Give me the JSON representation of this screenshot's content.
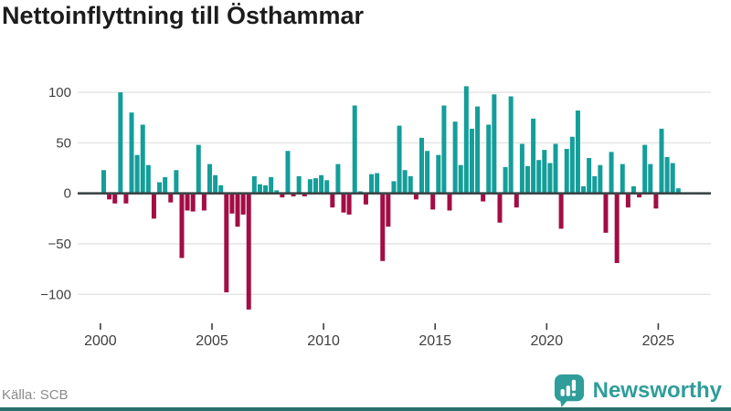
{
  "header": {
    "title": "Nettoinflyttning till Östhammar"
  },
  "footer": {
    "source": "Källa: SCB",
    "brand": "Newsworthy"
  },
  "icons": {
    "logo": "newsworthy-speech-bubble-bar-chart-icon"
  },
  "colors": {
    "positive": "#149e9a",
    "negative": "#a30d45",
    "axis": "#3b4647",
    "grid": "#e4e4e4",
    "tick_text": "#3f3f3f",
    "title_text": "#1c1c1c",
    "source_text": "#8b8b8b",
    "logo_teal": "#2f9d9a",
    "bottom_bar": "#27706e"
  },
  "chart_data": {
    "type": "bar",
    "title": "Nettoinflyttning till Östhammar",
    "x_unit": "quarter",
    "start": "2000-Q1",
    "end": "2025-Q4",
    "grid": "horizontal",
    "legend": "none",
    "x_tick_labels": [
      "2000",
      "2005",
      "2010",
      "2015",
      "2020",
      "2025"
    ],
    "y_tick_values": [
      100,
      50,
      0,
      -50,
      -100
    ],
    "y_tick_labels": [
      "100",
      "50",
      "0",
      "−50",
      "−100"
    ],
    "ylim": [
      -125,
      112
    ],
    "series": [
      {
        "name": "Nettoinflyttning",
        "values": [
          23,
          -6,
          -10,
          100,
          -10,
          80,
          38,
          68,
          28,
          -25,
          11,
          16,
          -9,
          23,
          -64,
          -17,
          -18,
          48,
          -17,
          29,
          18,
          8,
          -98,
          -20,
          -33,
          -21,
          -115,
          17,
          9,
          8,
          16,
          3,
          -4,
          42,
          -3,
          17,
          -3,
          14,
          15,
          18,
          13,
          -14,
          29,
          -19,
          -21,
          87,
          2,
          -11,
          19,
          20,
          -67,
          -33,
          12,
          67,
          23,
          17,
          -6,
          55,
          42,
          -16,
          38,
          87,
          -17,
          71,
          28,
          106,
          64,
          86,
          -8,
          68,
          98,
          -29,
          26,
          96,
          -14,
          49,
          27,
          74,
          33,
          43,
          30,
          49,
          -35,
          44,
          56,
          82,
          7,
          35,
          17,
          28,
          -39,
          41,
          -69,
          29,
          -14,
          7,
          -4,
          48,
          29,
          -15,
          64,
          36,
          30,
          5
        ]
      }
    ]
  }
}
